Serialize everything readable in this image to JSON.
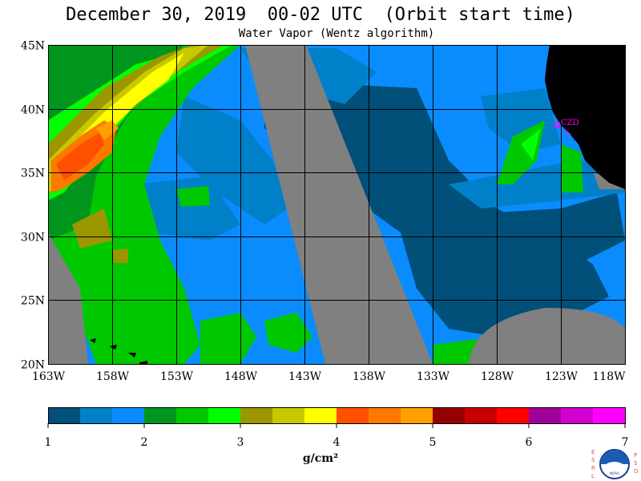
{
  "title": "December 30, 2019  00-02 UTC  (Orbit start time)",
  "subtitle": "Water Vapor (Wentz algorithm)",
  "map": {
    "lat_range": [
      20,
      45
    ],
    "lon_range": [
      -163,
      -118
    ],
    "lat_labels": [
      "45N",
      "40N",
      "35N",
      "30N",
      "25N",
      "20N"
    ],
    "lon_labels": [
      "163W",
      "158W",
      "153W",
      "148W",
      "143W",
      "138W",
      "133W",
      "128W",
      "123W",
      "118W"
    ],
    "station_label": "CZD",
    "colors": {
      "no_data": "#808080",
      "land": "#000000",
      "grid": "#000000",
      "station": "#ff00ff"
    }
  },
  "colorbar": {
    "tick_labels": [
      "1",
      "2",
      "3",
      "4",
      "5",
      "6",
      "7"
    ],
    "unit": "g/cm²",
    "colors": [
      "#00507a",
      "#0080c8",
      "#0a8cff",
      "#00961e",
      "#00c800",
      "#00ff00",
      "#9c9600",
      "#c8c800",
      "#ffff00",
      "#ff5000",
      "#ff7800",
      "#ffa000",
      "#960000",
      "#c80000",
      "#ff0000",
      "#a0009a",
      "#d200d2",
      "#ff00ff"
    ]
  },
  "logo": {
    "left_letters": "ESRL",
    "right_letters": "PSD",
    "center_text": "NOAA"
  }
}
